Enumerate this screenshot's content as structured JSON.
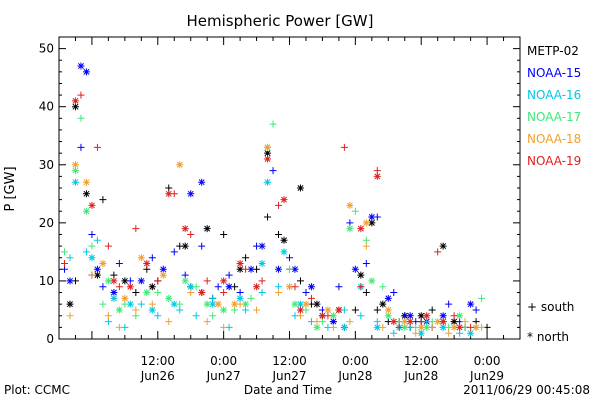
{
  "chart_data": {
    "type": "scatter",
    "title": "Hemispheric Power [GW]",
    "ylabel": "P [GW]",
    "xlabel": "Date and Time",
    "ylim": [
      0,
      52
    ],
    "xlim_hours": [
      0,
      84
    ],
    "yticks": [
      0,
      10,
      20,
      30,
      40,
      50
    ],
    "xticks": [
      {
        "hour": 18,
        "time": "12:00",
        "date": "Jun26"
      },
      {
        "hour": 30,
        "time": "0:00",
        "date": "Jun27"
      },
      {
        "hour": 42,
        "time": "12:00",
        "date": "Jun27"
      },
      {
        "hour": 54,
        "time": "0:00",
        "date": "Jun28"
      },
      {
        "hour": 66,
        "time": "12:00",
        "date": "Jun28"
      },
      {
        "hour": 78,
        "time": "0:00",
        "date": "Jun29"
      }
    ],
    "legend": {
      "placement": "right",
      "markers": [
        {
          "symbol": "+",
          "label": "south"
        },
        {
          "symbol": "*",
          "label": "north"
        }
      ]
    },
    "series": [
      {
        "name": "METP-02",
        "color": "#000000",
        "south": [
          [
            3,
            10
          ],
          [
            6,
            11
          ],
          [
            8,
            24
          ],
          [
            10,
            11
          ],
          [
            14,
            8
          ],
          [
            16,
            12
          ],
          [
            18,
            10
          ],
          [
            20,
            26
          ],
          [
            22,
            16
          ],
          [
            24,
            9
          ],
          [
            26,
            8
          ],
          [
            28,
            7
          ],
          [
            30,
            18
          ],
          [
            32,
            9
          ],
          [
            34,
            14
          ],
          [
            36,
            12
          ],
          [
            38,
            21
          ],
          [
            40,
            18
          ],
          [
            42,
            12
          ],
          [
            44,
            10
          ],
          [
            46,
            6
          ],
          [
            48,
            4
          ],
          [
            50,
            3
          ],
          [
            52,
            2
          ],
          [
            54,
            5
          ],
          [
            56,
            8
          ],
          [
            58,
            5
          ],
          [
            60,
            3
          ],
          [
            62,
            3
          ],
          [
            64,
            2
          ],
          [
            66,
            3
          ],
          [
            68,
            5
          ],
          [
            70,
            3
          ],
          [
            72,
            3
          ],
          [
            74,
            2
          ],
          [
            76,
            3
          ],
          [
            78,
            2
          ]
        ],
        "north": [
          [
            2,
            6
          ],
          [
            3,
            40
          ],
          [
            5,
            25
          ],
          [
            7,
            11
          ],
          [
            12,
            10
          ],
          [
            17,
            9
          ],
          [
            23,
            16
          ],
          [
            27,
            19
          ],
          [
            33,
            12
          ],
          [
            38,
            32
          ],
          [
            41,
            17
          ],
          [
            44,
            26
          ],
          [
            47,
            6
          ],
          [
            51,
            5
          ],
          [
            55,
            11
          ],
          [
            57,
            20
          ],
          [
            59,
            6
          ],
          [
            63,
            4
          ],
          [
            66,
            4
          ],
          [
            70,
            16
          ],
          [
            72,
            3
          ]
        ]
      },
      {
        "name": "NOAA-15",
        "color": "#0000ff",
        "south": [
          [
            1,
            12
          ],
          [
            4,
            33
          ],
          [
            6,
            18
          ],
          [
            8,
            9
          ],
          [
            11,
            13
          ],
          [
            13,
            10
          ],
          [
            17,
            14
          ],
          [
            21,
            15
          ],
          [
            23,
            11
          ],
          [
            26,
            16
          ],
          [
            29,
            9
          ],
          [
            31,
            11
          ],
          [
            33,
            8
          ],
          [
            36,
            16
          ],
          [
            39,
            29
          ],
          [
            42,
            14
          ],
          [
            45,
            8
          ],
          [
            48,
            5
          ],
          [
            51,
            9
          ],
          [
            53,
            20
          ],
          [
            56,
            13
          ],
          [
            58,
            21
          ],
          [
            61,
            8
          ],
          [
            63,
            4
          ],
          [
            65,
            3
          ],
          [
            68,
            2
          ],
          [
            71,
            6
          ],
          [
            73,
            3
          ],
          [
            76,
            5
          ]
        ],
        "north": [
          [
            2,
            10
          ],
          [
            4,
            47
          ],
          [
            5,
            46
          ],
          [
            7,
            12
          ],
          [
            10,
            8
          ],
          [
            15,
            10
          ],
          [
            19,
            12
          ],
          [
            24,
            25
          ],
          [
            26,
            27
          ],
          [
            31,
            9
          ],
          [
            35,
            12
          ],
          [
            37,
            16
          ],
          [
            40,
            12
          ],
          [
            43,
            12
          ],
          [
            46,
            9
          ],
          [
            50,
            3
          ],
          [
            54,
            12
          ],
          [
            57,
            21
          ],
          [
            60,
            7
          ],
          [
            64,
            4
          ],
          [
            67,
            3
          ],
          [
            70,
            4
          ],
          [
            75,
            6
          ]
        ]
      },
      {
        "name": "NOAA-16",
        "color": "#00c8e6",
        "south": [
          [
            2,
            14
          ],
          [
            5,
            15
          ],
          [
            7,
            17
          ],
          [
            9,
            3
          ],
          [
            12,
            2
          ],
          [
            15,
            6
          ],
          [
            18,
            4
          ],
          [
            22,
            5
          ],
          [
            25,
            4
          ],
          [
            28,
            7
          ],
          [
            31,
            2
          ],
          [
            34,
            5
          ],
          [
            37,
            8
          ],
          [
            40,
            9
          ],
          [
            43,
            4
          ],
          [
            46,
            3
          ],
          [
            49,
            2
          ],
          [
            52,
            5
          ],
          [
            55,
            4
          ],
          [
            58,
            3
          ],
          [
            61,
            1
          ],
          [
            64,
            2
          ],
          [
            67,
            3
          ],
          [
            70,
            2
          ],
          [
            73,
            1
          ],
          [
            76,
            2
          ]
        ],
        "north": [
          [
            3,
            27
          ],
          [
            6,
            14
          ],
          [
            10,
            7
          ],
          [
            13,
            6
          ],
          [
            17,
            5
          ],
          [
            21,
            6
          ],
          [
            24,
            9
          ],
          [
            28,
            6
          ],
          [
            33,
            7
          ],
          [
            37,
            13
          ],
          [
            38,
            27
          ],
          [
            41,
            15
          ],
          [
            44,
            6
          ],
          [
            48,
            4
          ],
          [
            52,
            2
          ],
          [
            55,
            9
          ],
          [
            58,
            2
          ],
          [
            62,
            2
          ],
          [
            66,
            1
          ],
          [
            70,
            2
          ],
          [
            75,
            1
          ]
        ]
      },
      {
        "name": "NOAA-17",
        "color": "#40e878",
        "south": [
          [
            1,
            15
          ],
          [
            4,
            38
          ],
          [
            6,
            16
          ],
          [
            8,
            6
          ],
          [
            12,
            6
          ],
          [
            14,
            4
          ],
          [
            18,
            8
          ],
          [
            22,
            6
          ],
          [
            25,
            9
          ],
          [
            28,
            4
          ],
          [
            32,
            5
          ],
          [
            35,
            7
          ],
          [
            39,
            37
          ],
          [
            42,
            12
          ],
          [
            45,
            5
          ],
          [
            48,
            3
          ],
          [
            51,
            5
          ],
          [
            54,
            22
          ],
          [
            56,
            17
          ],
          [
            59,
            9
          ],
          [
            62,
            3
          ],
          [
            65,
            2
          ],
          [
            68,
            3
          ],
          [
            71,
            2
          ],
          [
            74,
            2
          ],
          [
            77,
            7
          ]
        ],
        "north": [
          [
            3,
            29
          ],
          [
            5,
            22
          ],
          [
            9,
            10
          ],
          [
            11,
            5
          ],
          [
            16,
            8
          ],
          [
            20,
            7
          ],
          [
            23,
            10
          ],
          [
            27,
            6
          ],
          [
            30,
            5
          ],
          [
            34,
            6
          ],
          [
            38,
            33
          ],
          [
            43,
            6
          ],
          [
            47,
            2
          ],
          [
            50,
            4
          ],
          [
            53,
            19
          ],
          [
            57,
            10
          ],
          [
            60,
            4
          ],
          [
            63,
            2
          ],
          [
            67,
            2
          ],
          [
            70,
            3
          ],
          [
            73,
            4
          ]
        ]
      },
      {
        "name": "NOAA-18",
        "color": "#f0a030",
        "south": [
          [
            2,
            4
          ],
          [
            6,
            11
          ],
          [
            9,
            4
          ],
          [
            11,
            2
          ],
          [
            14,
            5
          ],
          [
            17,
            6
          ],
          [
            20,
            3
          ],
          [
            24,
            8
          ],
          [
            27,
            3
          ],
          [
            30,
            2
          ],
          [
            33,
            6
          ],
          [
            36,
            5
          ],
          [
            40,
            8
          ],
          [
            44,
            4
          ],
          [
            47,
            3
          ],
          [
            50,
            2
          ],
          [
            53,
            3
          ],
          [
            56,
            16
          ],
          [
            59,
            2
          ],
          [
            62,
            2
          ],
          [
            65,
            1
          ],
          [
            68,
            2
          ],
          [
            71,
            1
          ],
          [
            74,
            3
          ],
          [
            77,
            2
          ]
        ],
        "north": [
          [
            3,
            30
          ],
          [
            5,
            27
          ],
          [
            8,
            13
          ],
          [
            12,
            7
          ],
          [
            15,
            14
          ],
          [
            19,
            11
          ],
          [
            22,
            30
          ],
          [
            26,
            8
          ],
          [
            29,
            6
          ],
          [
            32,
            6
          ],
          [
            38,
            33
          ],
          [
            42,
            9
          ],
          [
            45,
            6
          ],
          [
            49,
            5
          ],
          [
            53,
            23
          ],
          [
            56,
            20
          ],
          [
            60,
            5
          ],
          [
            63,
            3
          ],
          [
            66,
            2
          ],
          [
            69,
            3
          ],
          [
            72,
            2
          ],
          [
            76,
            2
          ]
        ]
      },
      {
        "name": "NOAA-19",
        "color": "#e02020",
        "south": [
          [
            1,
            13
          ],
          [
            4,
            42
          ],
          [
            7,
            33
          ],
          [
            9,
            16
          ],
          [
            11,
            9
          ],
          [
            14,
            19
          ],
          [
            18,
            10
          ],
          [
            21,
            25
          ],
          [
            24,
            18
          ],
          [
            27,
            10
          ],
          [
            30,
            8
          ],
          [
            34,
            12
          ],
          [
            37,
            10
          ],
          [
            40,
            23
          ],
          [
            43,
            9
          ],
          [
            46,
            7
          ],
          [
            49,
            4
          ],
          [
            52,
            33
          ],
          [
            55,
            9
          ],
          [
            58,
            29
          ],
          [
            62,
            2
          ],
          [
            66,
            3
          ],
          [
            69,
            15
          ],
          [
            72,
            4
          ],
          [
            75,
            2
          ]
        ],
        "north": [
          [
            3,
            41
          ],
          [
            6,
            23
          ],
          [
            10,
            10
          ],
          [
            13,
            9
          ],
          [
            16,
            13
          ],
          [
            20,
            25
          ],
          [
            23,
            19
          ],
          [
            26,
            8
          ],
          [
            30,
            10
          ],
          [
            33,
            13
          ],
          [
            36,
            9
          ],
          [
            38,
            31
          ],
          [
            41,
            24
          ],
          [
            44,
            5
          ],
          [
            48,
            4
          ],
          [
            51,
            5
          ],
          [
            55,
            19
          ],
          [
            58,
            28
          ],
          [
            61,
            3
          ],
          [
            64,
            3
          ],
          [
            67,
            4
          ],
          [
            70,
            3
          ],
          [
            73,
            2
          ]
        ]
      }
    ]
  },
  "footer": {
    "left": "Plot: CCMC",
    "center": "Date and Time",
    "right": "2011/06/29 00:45:08"
  }
}
